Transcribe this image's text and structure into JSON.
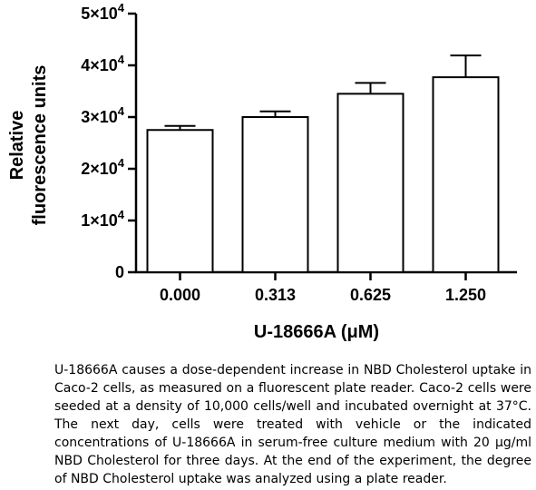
{
  "chart_data": {
    "type": "bar",
    "categories": [
      "0.000",
      "0.313",
      "0.625",
      "1.250"
    ],
    "values": [
      27500,
      30000,
      34500,
      37700
    ],
    "errors": [
      800,
      1100,
      2100,
      4200
    ],
    "ylim": [
      0,
      50000
    ],
    "yticks": [
      0,
      10000,
      20000,
      30000,
      40000,
      50000
    ],
    "ytick_labels": [
      {
        "base": "0",
        "exp": ""
      },
      {
        "base": "1×10",
        "exp": "4"
      },
      {
        "base": "2×10",
        "exp": "4"
      },
      {
        "base": "3×10",
        "exp": "4"
      },
      {
        "base": "4×10",
        "exp": "4"
      },
      {
        "base": "5×10",
        "exp": "4"
      }
    ],
    "ylabel_line1": "Relative",
    "ylabel_line2": "fluorescence units",
    "xlabel": "U-18666A (μM)",
    "bar_color": "#ffffff",
    "stroke_color": "#000000"
  },
  "caption": "U-18666A causes a dose-dependent increase in NBD Cholesterol uptake in Caco-2 cells, as measured on a fluorescent plate reader. Caco-2 cells were seeded at a density of 10,000 cells/well and incubated overnight at 37°C. The next day, cells were treated with vehicle or the indicated concentrations of U-18666A in serum-free culture medium with 20 μg/ml NBD Cholesterol for three days. At the end of the experiment, the degree of NBD Cholesterol uptake was analyzed using a plate reader."
}
